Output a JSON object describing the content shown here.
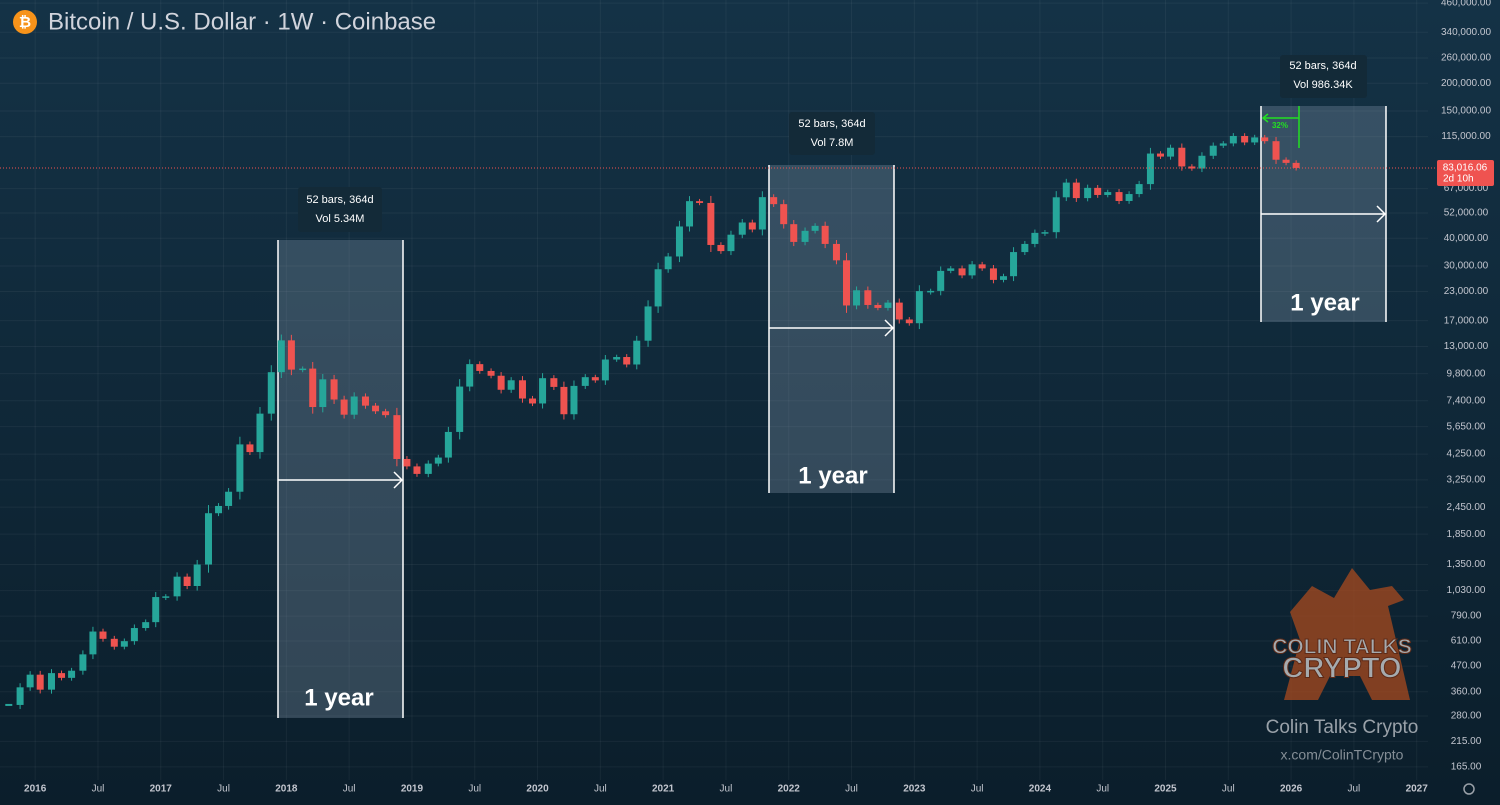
{
  "chart_data": {
    "type": "candlestick",
    "title": "Bitcoin / U.S. Dollar · 1W · Coinbase",
    "log_scale": true,
    "grid": true,
    "up_color": "#26a69a",
    "down_color": "#ef5350",
    "xlim": [
      2015.72,
      2027.09
    ],
    "ylim": [
      144,
      475000
    ],
    "xticks": [
      2016,
      {
        "value": 2016.5,
        "label": "Jul"
      },
      2017,
      {
        "value": 2017.5,
        "label": "Jul"
      },
      2018,
      {
        "value": 2018.5,
        "label": "Jul"
      },
      2019,
      {
        "value": 2019.5,
        "label": "Jul"
      },
      2020,
      {
        "value": 2020.5,
        "label": "Jul"
      },
      2021,
      {
        "value": 2021.5,
        "label": "Jul"
      },
      2022,
      {
        "value": 2022.5,
        "label": "Jul"
      },
      2023,
      {
        "value": 2023.5,
        "label": "Jul"
      },
      2024,
      {
        "value": 2024.5,
        "label": "Jul"
      },
      2025,
      {
        "value": 2025.5,
        "label": "Jul"
      },
      2026,
      {
        "value": 2026.5,
        "label": "Jul"
      },
      2027
    ],
    "yticks": [
      {
        "value": 165,
        "label": "165.00"
      },
      {
        "value": 215,
        "label": "215.00"
      },
      {
        "value": 280,
        "label": "280.00"
      },
      {
        "value": 360,
        "label": "360.00"
      },
      {
        "value": 470,
        "label": "470.00"
      },
      {
        "value": 610,
        "label": "610.00"
      },
      {
        "value": 790,
        "label": "790.00"
      },
      {
        "value": 1030,
        "label": "1,030.00"
      },
      {
        "value": 1350,
        "label": "1,350.00"
      },
      {
        "value": 1850,
        "label": "1,850.00"
      },
      {
        "value": 2450,
        "label": "2,450.00"
      },
      {
        "value": 3250,
        "label": "3,250.00"
      },
      {
        "value": 4250,
        "label": "4,250.00"
      },
      {
        "value": 5650,
        "label": "5,650.00"
      },
      {
        "value": 7400,
        "label": "7,400.00"
      },
      {
        "value": 9800,
        "label": "9,800.00"
      },
      {
        "value": 13000,
        "label": "13,000.00"
      },
      {
        "value": 17000,
        "label": "17,000.00"
      },
      {
        "value": 23000,
        "label": "23,000.00"
      },
      {
        "value": 30000,
        "label": "30,000.00"
      },
      {
        "value": 40000,
        "label": "40,000.00"
      },
      {
        "value": 52000,
        "label": "52,000.00"
      },
      {
        "value": 67000,
        "label": "67,000.00"
      },
      {
        "value": 115000,
        "label": "115,000.00"
      },
      {
        "value": 150000,
        "label": "150,000.00"
      },
      {
        "value": 200000,
        "label": "200,000.00"
      },
      {
        "value": 260000,
        "label": "260,000.00"
      },
      {
        "value": 340000,
        "label": "340,000.00"
      },
      {
        "value": 460000,
        "label": "460,000.00"
      }
    ],
    "x": [
      2015.79,
      2015.88,
      2015.96,
      2016.04,
      2016.13,
      2016.21,
      2016.29,
      2016.38,
      2016.46,
      2016.54,
      2016.63,
      2016.71,
      2016.79,
      2016.88,
      2016.96,
      2017.04,
      2017.13,
      2017.21,
      2017.29,
      2017.38,
      2017.46,
      2017.54,
      2017.63,
      2017.71,
      2017.79,
      2017.88,
      2017.96,
      2018.04,
      2018.13,
      2018.21,
      2018.29,
      2018.38,
      2018.46,
      2018.54,
      2018.63,
      2018.71,
      2018.79,
      2018.88,
      2018.96,
      2019.04,
      2019.13,
      2019.21,
      2019.29,
      2019.38,
      2019.46,
      2019.54,
      2019.63,
      2019.71,
      2019.79,
      2019.88,
      2019.96,
      2020.04,
      2020.13,
      2020.21,
      2020.29,
      2020.38,
      2020.46,
      2020.54,
      2020.63,
      2020.71,
      2020.79,
      2020.88,
      2020.96,
      2021.04,
      2021.13,
      2021.21,
      2021.29,
      2021.38,
      2021.46,
      2021.54,
      2021.63,
      2021.71,
      2021.79,
      2021.88,
      2021.96,
      2022.04,
      2022.13,
      2022.21,
      2022.29,
      2022.38,
      2022.46,
      2022.54,
      2022.63,
      2022.71,
      2022.79,
      2022.88,
      2022.96,
      2023.04,
      2023.13,
      2023.21,
      2023.29,
      2023.38,
      2023.46,
      2023.54,
      2023.63,
      2023.71,
      2023.79,
      2023.88,
      2023.96,
      2024.04,
      2024.13,
      2024.21,
      2024.29,
      2024.38,
      2024.46,
      2024.54,
      2024.63,
      2024.71,
      2024.79,
      2024.88,
      2024.96,
      2025.04,
      2025.13,
      2025.21,
      2025.29,
      2025.38,
      2025.46,
      2025.54,
      2025.63,
      2025.71,
      2025.79,
      2025.88,
      2025.96,
      2026.04
    ],
    "series": [
      {
        "values": [
          314,
          377,
          430,
          368,
          437,
          416,
          448,
          531,
          673,
          624,
          575,
          609,
          698,
          742,
          963,
          970,
          1190,
          1080,
          1350,
          2300,
          2480,
          2875,
          4700,
          4340,
          6470,
          9950,
          13850,
          10220,
          10330,
          6930,
          9240,
          7490,
          6400,
          7730,
          7030,
          6630,
          6370,
          4040,
          3740,
          3460,
          3850,
          4100,
          5350,
          8570,
          10820,
          10080,
          9590,
          8290,
          9150,
          7570,
          7190,
          9350,
          8540,
          6430,
          8630,
          9450,
          9140,
          11350,
          11650,
          10780,
          13800,
          19700,
          28990,
          33100,
          45200,
          58800,
          57700,
          37300,
          35000,
          41500,
          47100,
          43800,
          61300,
          57000,
          46300,
          38500,
          43200,
          45500,
          37700,
          31800,
          19900,
          23300,
          20000,
          19400,
          20500,
          17200,
          16550,
          23100,
          23150,
          28500,
          29250,
          27200,
          30500,
          29250,
          25950,
          26970,
          34650,
          37700,
          42300,
          42600,
          61200,
          71300,
          60700,
          67500,
          62700,
          64600,
          58900,
          63300,
          70200,
          96400,
          93400,
          102400,
          84300,
          82500,
          94200,
          104600,
          107100,
          115700,
          108200,
          114000,
          109600,
          90400,
          87500,
          83016.06
        ]
      }
    ],
    "last_price_label": "83,016.06",
    "countdown": "2d 10h",
    "annotations": [
      {
        "bars": "52 bars, 364d",
        "volume": "Vol 5.34M",
        "label": "1 year"
      },
      {
        "bars": "52 bars, 364d",
        "volume": "Vol 7.8M",
        "label": "1 year"
      },
      {
        "bars": "52 bars, 364d",
        "volume": "Vol 986.34K",
        "label": "1 year",
        "change": "32%"
      }
    ],
    "watermark": {
      "logo_line1": "COLIN TALKS",
      "logo_line2": "CRYPTO",
      "name": "Colin Talks Crypto",
      "handle": "x.com/ColinTCrypto"
    }
  }
}
